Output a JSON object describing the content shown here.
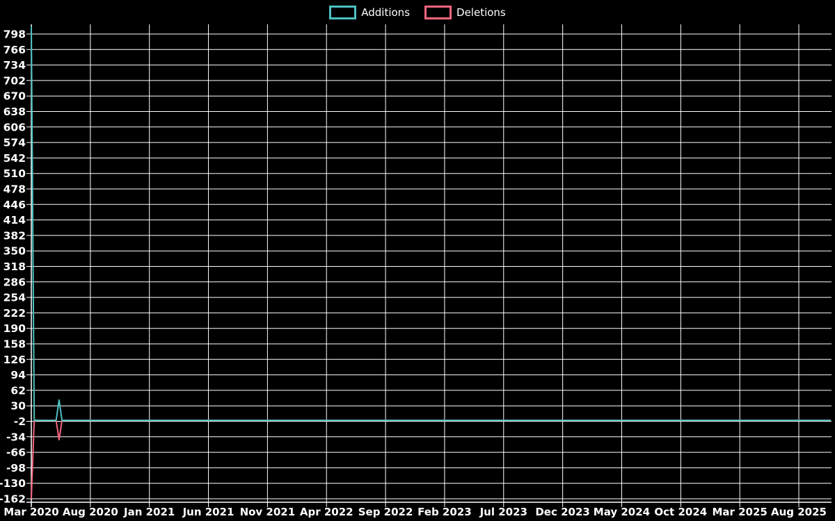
{
  "chart": {
    "background_color": "#000000",
    "grid_color": "#ffffff",
    "axis_color": "#ffffff",
    "text_color": "#ffffff"
  },
  "legend": {
    "position": "top-center",
    "items": [
      {
        "label": "Additions"
      },
      {
        "label": "Deletions"
      }
    ]
  },
  "chart_data": {
    "type": "line",
    "title": "",
    "xlabel": "",
    "ylabel": "",
    "grid": true,
    "legend_position": "top",
    "x_axis": {
      "unit": "months since Mar 2020",
      "tick_interval_months": 5,
      "range_months": [
        0,
        67.7
      ],
      "tick_labels": [
        "Mar 2020",
        "Aug 2020",
        "Jan 2021",
        "Jun 2021",
        "Nov 2021",
        "Apr 2022",
        "Sep 2022",
        "Feb 2023",
        "Jul 2023",
        "Dec 2023",
        "May 2024",
        "Oct 2024",
        "Mar 2025",
        "Aug 2025"
      ]
    },
    "y_axis": {
      "min": -162,
      "max": 798,
      "step": 32,
      "plot_top_value": 818,
      "plot_bottom_value": -169,
      "tick_labels": [
        "798",
        "766",
        "734",
        "702",
        "670",
        "638",
        "606",
        "574",
        "542",
        "510",
        "478",
        "446",
        "414",
        "382",
        "350",
        "318",
        "286",
        "254",
        "222",
        "190",
        "158",
        "126",
        "94",
        "62",
        "30",
        "-2",
        "-34",
        "-66",
        "-98",
        "-130",
        "-162"
      ]
    },
    "series": [
      {
        "name": "Additions",
        "color": "#4bc0c0",
        "points_month_value": [
          [
            0,
            814
          ],
          [
            0.25,
            0
          ],
          [
            2.1,
            0
          ],
          [
            2.35,
            42
          ],
          [
            2.6,
            0
          ],
          [
            67.7,
            0
          ]
        ]
      },
      {
        "name": "Deletions",
        "color": "#f4657e",
        "points_month_value": [
          [
            0,
            -162
          ],
          [
            0.25,
            0
          ],
          [
            2.1,
            0
          ],
          [
            2.35,
            -40
          ],
          [
            2.6,
            0
          ],
          [
            67.7,
            0
          ]
        ]
      }
    ]
  }
}
